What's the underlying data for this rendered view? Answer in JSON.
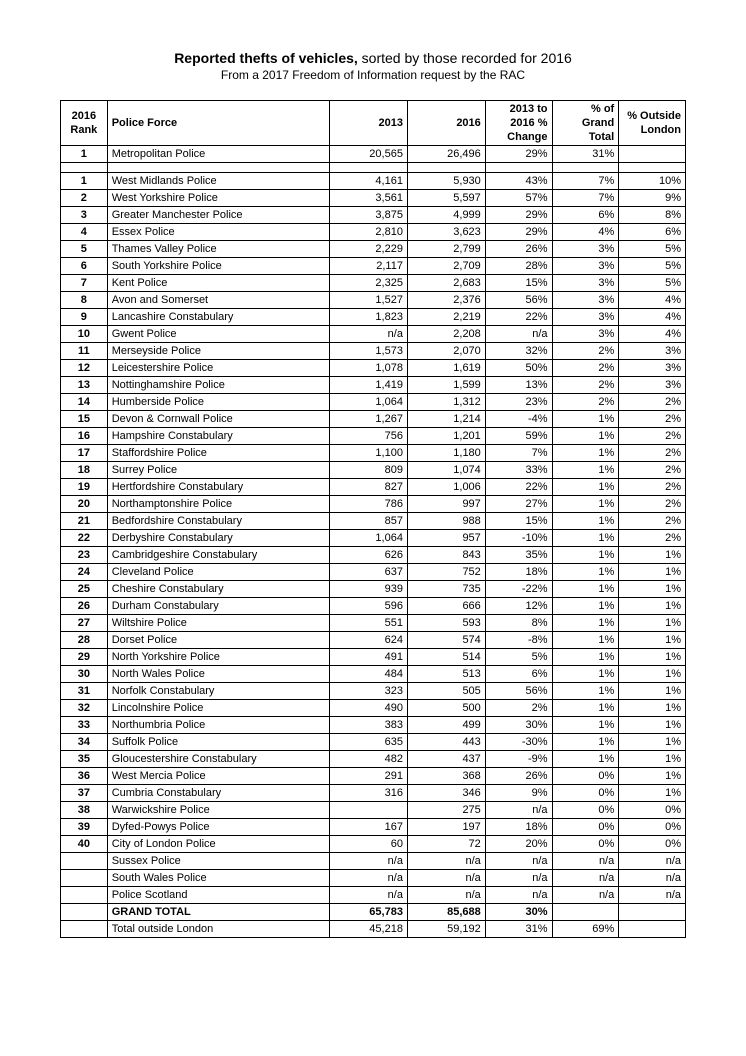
{
  "title_bold": "Reported thefts of vehicles,",
  "title_rest": " sorted by those recorded for 2016",
  "subtitle": "From a 2017 Freedom of Information request by the RAC",
  "headers": {
    "rank": "2016 Rank",
    "force": "Police Force",
    "y2013": "2013",
    "y2016": "2016",
    "change": "2013 to 2016 % Change",
    "grand": "% of Grand Total",
    "outside": "% Outside London"
  },
  "met_row": {
    "rank": "1",
    "force": "Metropolitan Police",
    "y2013": "20,565",
    "y2016": "26,496",
    "change": "29%",
    "grand": "31%",
    "outside": ""
  },
  "rows": [
    {
      "rank": "1",
      "force": "West Midlands Police",
      "y2013": "4,161",
      "y2016": "5,930",
      "change": "43%",
      "grand": "7%",
      "outside": "10%"
    },
    {
      "rank": "2",
      "force": "West Yorkshire Police",
      "y2013": "3,561",
      "y2016": "5,597",
      "change": "57%",
      "grand": "7%",
      "outside": "9%"
    },
    {
      "rank": "3",
      "force": "Greater Manchester Police",
      "y2013": "3,875",
      "y2016": "4,999",
      "change": "29%",
      "grand": "6%",
      "outside": "8%"
    },
    {
      "rank": "4",
      "force": "Essex Police",
      "y2013": "2,810",
      "y2016": "3,623",
      "change": "29%",
      "grand": "4%",
      "outside": "6%"
    },
    {
      "rank": "5",
      "force": "Thames Valley Police",
      "y2013": "2,229",
      "y2016": "2,799",
      "change": "26%",
      "grand": "3%",
      "outside": "5%"
    },
    {
      "rank": "6",
      "force": "South Yorkshire Police",
      "y2013": "2,117",
      "y2016": "2,709",
      "change": "28%",
      "grand": "3%",
      "outside": "5%"
    },
    {
      "rank": "7",
      "force": "Kent Police",
      "y2013": "2,325",
      "y2016": "2,683",
      "change": "15%",
      "grand": "3%",
      "outside": "5%"
    },
    {
      "rank": "8",
      "force": "Avon and Somerset",
      "y2013": "1,527",
      "y2016": "2,376",
      "change": "56%",
      "grand": "3%",
      "outside": "4%"
    },
    {
      "rank": "9",
      "force": "Lancashire Constabulary",
      "y2013": "1,823",
      "y2016": "2,219",
      "change": "22%",
      "grand": "3%",
      "outside": "4%"
    },
    {
      "rank": "10",
      "force": "Gwent Police",
      "y2013": "n/a",
      "y2016": "2,208",
      "change": "n/a",
      "grand": "3%",
      "outside": "4%"
    },
    {
      "rank": "11",
      "force": "Merseyside Police",
      "y2013": "1,573",
      "y2016": "2,070",
      "change": "32%",
      "grand": "2%",
      "outside": "3%"
    },
    {
      "rank": "12",
      "force": "Leicestershire Police",
      "y2013": "1,078",
      "y2016": "1,619",
      "change": "50%",
      "grand": "2%",
      "outside": "3%"
    },
    {
      "rank": "13",
      "force": "Nottinghamshire Police",
      "y2013": "1,419",
      "y2016": "1,599",
      "change": "13%",
      "grand": "2%",
      "outside": "3%"
    },
    {
      "rank": "14",
      "force": "Humberside Police",
      "y2013": "1,064",
      "y2016": "1,312",
      "change": "23%",
      "grand": "2%",
      "outside": "2%"
    },
    {
      "rank": "15",
      "force": "Devon & Cornwall Police",
      "y2013": "1,267",
      "y2016": "1,214",
      "change": "-4%",
      "grand": "1%",
      "outside": "2%"
    },
    {
      "rank": "16",
      "force": "Hampshire Constabulary",
      "y2013": "756",
      "y2016": "1,201",
      "change": "59%",
      "grand": "1%",
      "outside": "2%"
    },
    {
      "rank": "17",
      "force": "Staffordshire Police",
      "y2013": "1,100",
      "y2016": "1,180",
      "change": "7%",
      "grand": "1%",
      "outside": "2%"
    },
    {
      "rank": "18",
      "force": "Surrey Police",
      "y2013": "809",
      "y2016": "1,074",
      "change": "33%",
      "grand": "1%",
      "outside": "2%"
    },
    {
      "rank": "19",
      "force": "Hertfordshire Constabulary",
      "y2013": "827",
      "y2016": "1,006",
      "change": "22%",
      "grand": "1%",
      "outside": "2%"
    },
    {
      "rank": "20",
      "force": "Northamptonshire Police",
      "y2013": "786",
      "y2016": "997",
      "change": "27%",
      "grand": "1%",
      "outside": "2%"
    },
    {
      "rank": "21",
      "force": "Bedfordshire Constabulary",
      "y2013": "857",
      "y2016": "988",
      "change": "15%",
      "grand": "1%",
      "outside": "2%"
    },
    {
      "rank": "22",
      "force": "Derbyshire Constabulary",
      "y2013": "1,064",
      "y2016": "957",
      "change": "-10%",
      "grand": "1%",
      "outside": "2%"
    },
    {
      "rank": "23",
      "force": "Cambridgeshire Constabulary",
      "y2013": "626",
      "y2016": "843",
      "change": "35%",
      "grand": "1%",
      "outside": "1%"
    },
    {
      "rank": "24",
      "force": "Cleveland Police",
      "y2013": "637",
      "y2016": "752",
      "change": "18%",
      "grand": "1%",
      "outside": "1%"
    },
    {
      "rank": "25",
      "force": "Cheshire Constabulary",
      "y2013": "939",
      "y2016": "735",
      "change": "-22%",
      "grand": "1%",
      "outside": "1%"
    },
    {
      "rank": "26",
      "force": "Durham Constabulary",
      "y2013": "596",
      "y2016": "666",
      "change": "12%",
      "grand": "1%",
      "outside": "1%"
    },
    {
      "rank": "27",
      "force": "Wiltshire Police",
      "y2013": "551",
      "y2016": "593",
      "change": "8%",
      "grand": "1%",
      "outside": "1%"
    },
    {
      "rank": "28",
      "force": "Dorset Police",
      "y2013": "624",
      "y2016": "574",
      "change": "-8%",
      "grand": "1%",
      "outside": "1%"
    },
    {
      "rank": "29",
      "force": "North Yorkshire Police",
      "y2013": "491",
      "y2016": "514",
      "change": "5%",
      "grand": "1%",
      "outside": "1%"
    },
    {
      "rank": "30",
      "force": "North Wales Police",
      "y2013": "484",
      "y2016": "513",
      "change": "6%",
      "grand": "1%",
      "outside": "1%"
    },
    {
      "rank": "31",
      "force": "Norfolk Constabulary",
      "y2013": "323",
      "y2016": "505",
      "change": "56%",
      "grand": "1%",
      "outside": "1%"
    },
    {
      "rank": "32",
      "force": "Lincolnshire Police",
      "y2013": "490",
      "y2016": "500",
      "change": "2%",
      "grand": "1%",
      "outside": "1%"
    },
    {
      "rank": "33",
      "force": "Northumbria Police",
      "y2013": "383",
      "y2016": "499",
      "change": "30%",
      "grand": "1%",
      "outside": "1%"
    },
    {
      "rank": "34",
      "force": "Suffolk Police",
      "y2013": "635",
      "y2016": "443",
      "change": "-30%",
      "grand": "1%",
      "outside": "1%"
    },
    {
      "rank": "35",
      "force": "Gloucestershire Constabulary",
      "y2013": "482",
      "y2016": "437",
      "change": "-9%",
      "grand": "1%",
      "outside": "1%"
    },
    {
      "rank": "36",
      "force": "West Mercia Police",
      "y2013": "291",
      "y2016": "368",
      "change": "26%",
      "grand": "0%",
      "outside": "1%"
    },
    {
      "rank": "37",
      "force": "Cumbria Constabulary",
      "y2013": "316",
      "y2016": "346",
      "change": "9%",
      "grand": "0%",
      "outside": "1%"
    },
    {
      "rank": "38",
      "force": "Warwickshire Police",
      "y2013": "",
      "y2016": "275",
      "change": "n/a",
      "grand": "0%",
      "outside": "0%"
    },
    {
      "rank": "39",
      "force": "Dyfed-Powys Police",
      "y2013": "167",
      "y2016": "197",
      "change": "18%",
      "grand": "0%",
      "outside": "0%"
    },
    {
      "rank": "40",
      "force": "City of London Police",
      "y2013": "60",
      "y2016": "72",
      "change": "20%",
      "grand": "0%",
      "outside": "0%"
    },
    {
      "rank": "",
      "force": "Sussex Police",
      "y2013": "n/a",
      "y2016": "n/a",
      "change": "n/a",
      "grand": "n/a",
      "outside": "n/a"
    },
    {
      "rank": "",
      "force": "South Wales Police",
      "y2013": "n/a",
      "y2016": "n/a",
      "change": "n/a",
      "grand": "n/a",
      "outside": "n/a"
    },
    {
      "rank": "",
      "force": "Police Scotland",
      "y2013": "n/a",
      "y2016": "n/a",
      "change": "n/a",
      "grand": "n/a",
      "outside": "n/a"
    }
  ],
  "totals": [
    {
      "rank": "",
      "force": "GRAND TOTAL",
      "y2013": "65,783",
      "y2016": "85,688",
      "change": "30%",
      "grand": "",
      "outside": "",
      "bold": true
    },
    {
      "rank": "",
      "force": "Total outside London",
      "y2013": "45,218",
      "y2016": "59,192",
      "change": "31%",
      "grand": "69%",
      "outside": "",
      "bold": false
    }
  ]
}
